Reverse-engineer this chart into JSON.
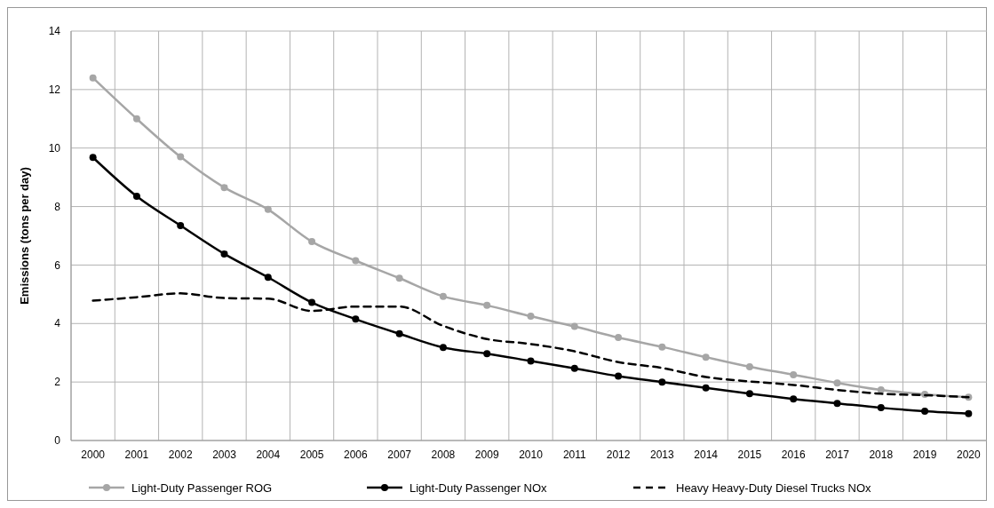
{
  "chart_data": {
    "type": "line",
    "ylabel": "Emissions  (tons per day)",
    "categories": [
      "2000",
      "2001",
      "2002",
      "2003",
      "2004",
      "2005",
      "2006",
      "2007",
      "2008",
      "2009",
      "2010",
      "2011",
      "2012",
      "2013",
      "2014",
      "2015",
      "2016",
      "2017",
      "2018",
      "2019",
      "2020"
    ],
    "series": [
      {
        "name": "Light-Duty Passenger ROG",
        "color": "#a6a6a6",
        "marker": "circle",
        "line_style": "solid",
        "values": [
          12.4,
          11.0,
          9.7,
          8.65,
          7.9,
          6.8,
          6.15,
          5.55,
          4.93,
          4.62,
          4.25,
          3.9,
          3.52,
          3.2,
          2.85,
          2.52,
          2.25,
          1.97,
          1.73,
          1.58,
          1.48
        ]
      },
      {
        "name": "Light-Duty Passenger NOx",
        "color": "#000000",
        "marker": "circle",
        "line_style": "solid",
        "values": [
          9.68,
          8.35,
          7.35,
          6.38,
          5.58,
          4.72,
          4.15,
          3.65,
          3.18,
          2.97,
          2.72,
          2.47,
          2.2,
          2.0,
          1.8,
          1.6,
          1.42,
          1.27,
          1.12,
          1.0,
          0.92
        ]
      },
      {
        "name": "Heavy Heavy-Duty Diesel Trucks NOx",
        "color": "#000000",
        "marker": "none",
        "line_style": "dashed",
        "values": [
          4.78,
          4.9,
          5.03,
          4.87,
          4.85,
          4.43,
          4.58,
          4.58,
          3.92,
          3.47,
          3.3,
          3.05,
          2.68,
          2.48,
          2.17,
          2.02,
          1.9,
          1.73,
          1.6,
          1.55,
          1.48
        ]
      }
    ],
    "ylim": [
      0,
      14
    ],
    "yticks": [
      0,
      2,
      4,
      6,
      8,
      10,
      12,
      14
    ],
    "grid": true,
    "legend": "bottom"
  }
}
